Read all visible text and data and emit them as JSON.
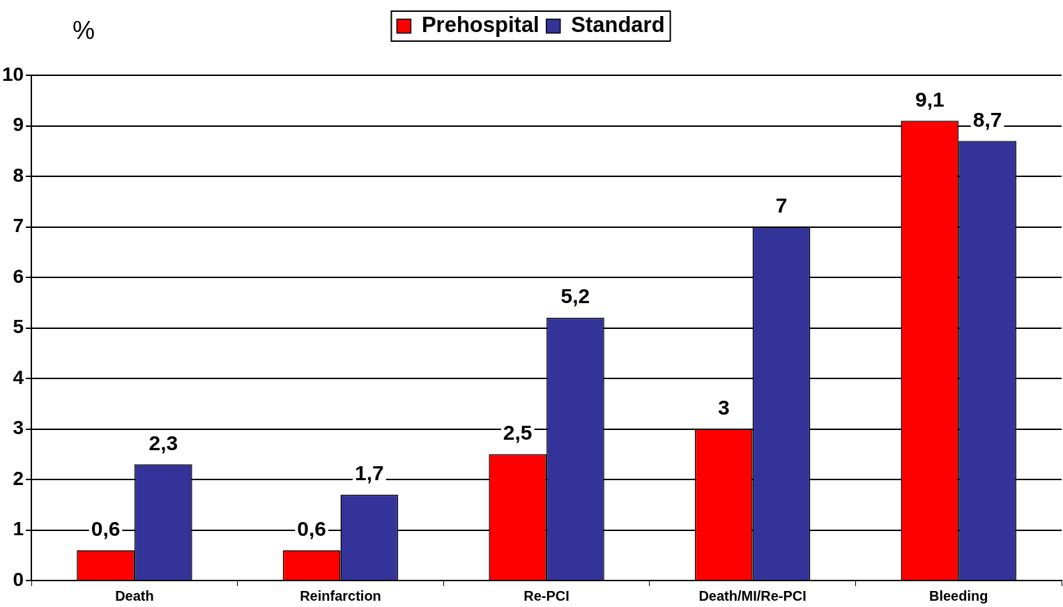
{
  "chart_data": {
    "type": "bar",
    "ylabel": "%",
    "categories": [
      "Death",
      "Reinfarction",
      "Re-PCI",
      "Death/MI/Re-PCI",
      "Bleeding"
    ],
    "series": [
      {
        "name": "Prehospital",
        "color": "#ff0000",
        "values": [
          0.6,
          0.6,
          2.5,
          3,
          9.1
        ],
        "value_labels": [
          "0,6",
          "0,6",
          "2,5",
          "3",
          "9,1"
        ]
      },
      {
        "name": "Standard",
        "color": "#333399",
        "values": [
          2.3,
          1.7,
          5.2,
          7,
          8.7
        ],
        "value_labels": [
          "2,3",
          "1,7",
          "5,2",
          "7",
          "8,7"
        ]
      }
    ],
    "ylim": [
      0,
      10
    ],
    "yticks": [
      0,
      1,
      2,
      3,
      4,
      5,
      6,
      7,
      8,
      9,
      10
    ],
    "grid": "y",
    "legend": "top"
  }
}
